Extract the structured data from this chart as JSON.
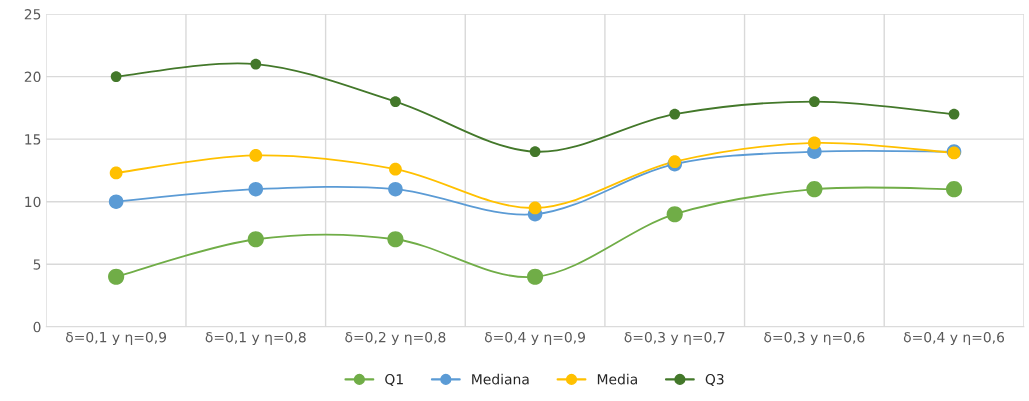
{
  "chart_data": {
    "type": "line",
    "categories": [
      "δ=0,1 y η=0,9",
      "δ=0,1 y η=0,8",
      "δ=0,2 y η=0,8",
      "δ=0,4 y η=0,9",
      "δ=0,3 y η=0,7",
      "δ=0,3 y η=0,6",
      "δ=0,4 y η=0,6"
    ],
    "series": [
      {
        "name": "Q1",
        "color": "#70ad47",
        "values": [
          4,
          7,
          7,
          4,
          9,
          11,
          11
        ]
      },
      {
        "name": "Mediana",
        "color": "#5b9bd5",
        "values": [
          10,
          11,
          11,
          9,
          13,
          14,
          14
        ]
      },
      {
        "name": "Media",
        "color": "#ffc000",
        "values": [
          12.3,
          13.7,
          12.6,
          9.5,
          13.2,
          14.7,
          13.9
        ]
      },
      {
        "name": "Q3",
        "color": "#43782a",
        "values": [
          20,
          21,
          18,
          14,
          17,
          18,
          17
        ]
      }
    ],
    "ylim": [
      0,
      25
    ],
    "yticks": [
      0,
      5,
      10,
      15,
      20,
      25
    ],
    "grid": true,
    "legend": "bottom",
    "marker": "circle",
    "line_style": "solid"
  }
}
